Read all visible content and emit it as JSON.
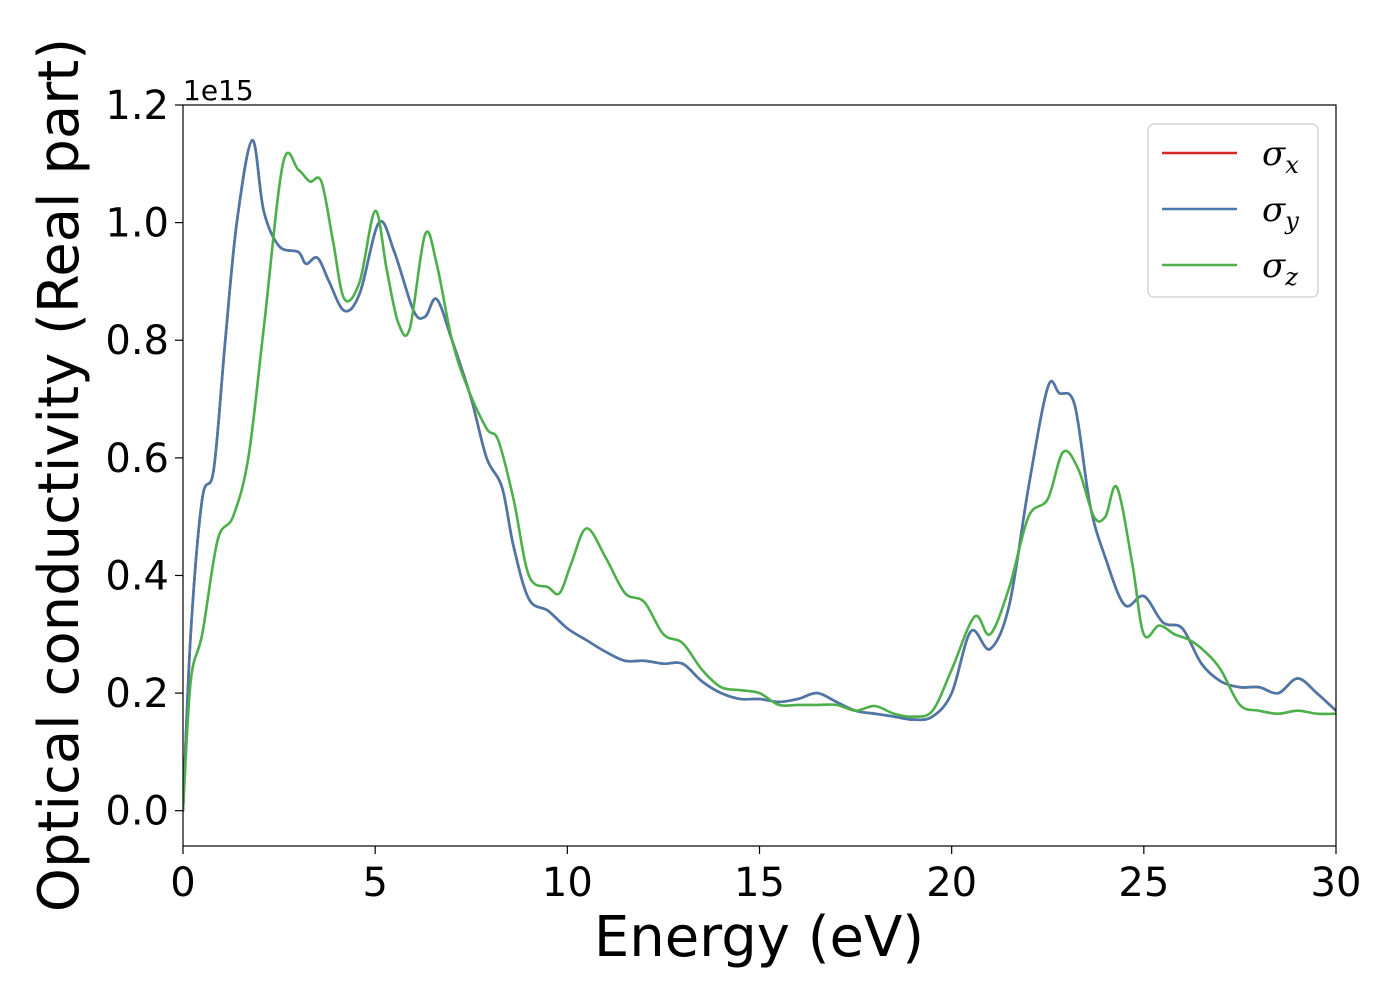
{
  "chart_data": {
    "type": "line",
    "xlabel": "Energy (eV)",
    "ylabel": "Optical conductivity (Real part)",
    "y_offset_label": "1e15",
    "xlim": [
      0,
      30
    ],
    "ylim": [
      -0.06,
      1.2
    ],
    "xticks": [
      0,
      5,
      10,
      15,
      20,
      25,
      30
    ],
    "xtick_labels": [
      "0",
      "5",
      "10",
      "15",
      "20",
      "25",
      "30"
    ],
    "yticks": [
      0.0,
      0.2,
      0.4,
      0.6,
      0.8,
      1.0,
      1.2
    ],
    "ytick_labels": [
      "0.0",
      "0.2",
      "0.4",
      "0.6",
      "0.8",
      "1.0",
      "1.2"
    ],
    "grid": false,
    "legend_position": "top-right",
    "series": [
      {
        "name": "σx",
        "symbol": "σ",
        "subscript": "x",
        "color": "#d62728",
        "x": [
          0,
          0.2,
          0.5,
          0.8,
          1.1,
          1.4,
          1.8,
          2.1,
          2.5,
          3.0,
          3.2,
          3.5,
          3.8,
          4.2,
          4.6,
          5.1,
          5.5,
          6.0,
          6.3,
          6.6,
          7.0,
          7.5,
          7.9,
          8.3,
          8.6,
          9.0,
          9.5,
          10.0,
          10.5,
          11.0,
          11.5,
          12.0,
          12.5,
          13.0,
          13.5,
          14.0,
          14.5,
          15.0,
          15.5,
          16.0,
          16.5,
          17.0,
          17.5,
          18.0,
          18.5,
          19.0,
          19.5,
          20.0,
          20.5,
          21.0,
          21.5,
          22.0,
          22.5,
          22.8,
          23.2,
          23.6,
          24.0,
          24.5,
          25.0,
          25.5,
          26.0,
          26.5,
          27.0,
          27.5,
          28.0,
          28.5,
          29.0,
          29.5,
          30.0
        ],
        "y": [
          0.0,
          0.3,
          0.53,
          0.58,
          0.8,
          1.0,
          1.14,
          1.02,
          0.96,
          0.95,
          0.93,
          0.94,
          0.9,
          0.85,
          0.88,
          1.0,
          0.95,
          0.85,
          0.84,
          0.87,
          0.8,
          0.7,
          0.6,
          0.55,
          0.45,
          0.36,
          0.34,
          0.31,
          0.29,
          0.27,
          0.255,
          0.255,
          0.25,
          0.25,
          0.22,
          0.2,
          0.19,
          0.19,
          0.185,
          0.19,
          0.2,
          0.185,
          0.17,
          0.165,
          0.16,
          0.155,
          0.16,
          0.2,
          0.305,
          0.275,
          0.35,
          0.55,
          0.72,
          0.71,
          0.69,
          0.52,
          0.43,
          0.35,
          0.365,
          0.32,
          0.31,
          0.25,
          0.22,
          0.21,
          0.21,
          0.2,
          0.225,
          0.2,
          0.17
        ]
      },
      {
        "name": "σy",
        "symbol": "σ",
        "subscript": "y",
        "color": "#4a78a8",
        "x": [
          0,
          0.2,
          0.5,
          0.8,
          1.1,
          1.4,
          1.8,
          2.1,
          2.5,
          3.0,
          3.2,
          3.5,
          3.8,
          4.2,
          4.6,
          5.1,
          5.5,
          6.0,
          6.3,
          6.6,
          7.0,
          7.5,
          7.9,
          8.3,
          8.6,
          9.0,
          9.5,
          10.0,
          10.5,
          11.0,
          11.5,
          12.0,
          12.5,
          13.0,
          13.5,
          14.0,
          14.5,
          15.0,
          15.5,
          16.0,
          16.5,
          17.0,
          17.5,
          18.0,
          18.5,
          19.0,
          19.5,
          20.0,
          20.5,
          21.0,
          21.5,
          22.0,
          22.5,
          22.8,
          23.2,
          23.6,
          24.0,
          24.5,
          25.0,
          25.5,
          26.0,
          26.5,
          27.0,
          27.5,
          28.0,
          28.5,
          29.0,
          29.5,
          30.0
        ],
        "y": [
          0.0,
          0.3,
          0.53,
          0.58,
          0.8,
          1.0,
          1.14,
          1.02,
          0.96,
          0.95,
          0.93,
          0.94,
          0.9,
          0.85,
          0.88,
          1.0,
          0.95,
          0.85,
          0.84,
          0.87,
          0.8,
          0.7,
          0.6,
          0.55,
          0.45,
          0.36,
          0.34,
          0.31,
          0.29,
          0.27,
          0.255,
          0.255,
          0.25,
          0.25,
          0.22,
          0.2,
          0.19,
          0.19,
          0.185,
          0.19,
          0.2,
          0.185,
          0.17,
          0.165,
          0.16,
          0.155,
          0.16,
          0.2,
          0.305,
          0.275,
          0.35,
          0.55,
          0.72,
          0.71,
          0.69,
          0.52,
          0.43,
          0.35,
          0.365,
          0.32,
          0.31,
          0.25,
          0.22,
          0.21,
          0.21,
          0.2,
          0.225,
          0.2,
          0.17
        ]
      },
      {
        "name": "σz",
        "symbol": "σ",
        "subscript": "z",
        "color": "#4daf4a",
        "x": [
          0,
          0.2,
          0.5,
          0.9,
          1.3,
          1.7,
          2.1,
          2.6,
          3.0,
          3.3,
          3.6,
          3.9,
          4.2,
          4.6,
          5.0,
          5.3,
          5.6,
          5.9,
          6.3,
          6.6,
          7.0,
          7.4,
          7.9,
          8.2,
          8.6,
          9.0,
          9.5,
          9.8,
          10.1,
          10.5,
          11.0,
          11.5,
          12.0,
          12.5,
          13.0,
          13.5,
          14.0,
          14.5,
          15.0,
          15.5,
          16.0,
          16.5,
          17.0,
          17.5,
          18.0,
          18.5,
          19.0,
          19.5,
          20.0,
          20.6,
          21.0,
          21.5,
          22.0,
          22.5,
          22.9,
          23.3,
          23.7,
          24.0,
          24.3,
          24.7,
          25.0,
          25.4,
          25.8,
          26.2,
          26.6,
          27.0,
          27.5,
          28.0,
          28.5,
          29.0,
          29.5,
          30.0
        ],
        "y": [
          0.0,
          0.22,
          0.3,
          0.46,
          0.5,
          0.6,
          0.82,
          1.1,
          1.09,
          1.07,
          1.07,
          0.97,
          0.87,
          0.9,
          1.02,
          0.92,
          0.83,
          0.82,
          0.98,
          0.93,
          0.8,
          0.72,
          0.65,
          0.63,
          0.53,
          0.4,
          0.38,
          0.37,
          0.42,
          0.48,
          0.43,
          0.37,
          0.355,
          0.3,
          0.285,
          0.24,
          0.21,
          0.205,
          0.2,
          0.18,
          0.18,
          0.18,
          0.18,
          0.17,
          0.178,
          0.165,
          0.16,
          0.17,
          0.24,
          0.33,
          0.3,
          0.38,
          0.5,
          0.53,
          0.61,
          0.58,
          0.5,
          0.5,
          0.55,
          0.42,
          0.3,
          0.315,
          0.3,
          0.29,
          0.27,
          0.24,
          0.18,
          0.17,
          0.165,
          0.17,
          0.165,
          0.165
        ]
      }
    ]
  }
}
